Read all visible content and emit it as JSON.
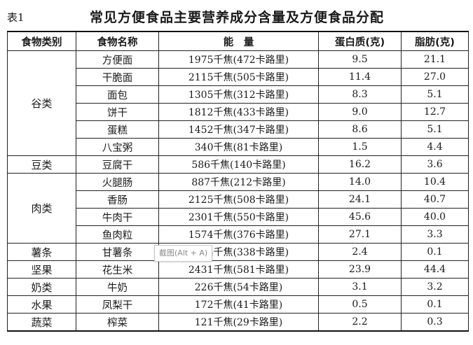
{
  "caption": {
    "table_no": "表1",
    "title": "常见方便食品主要营养成分含量及方便食品分配"
  },
  "headers": [
    "食物类别",
    "食物名称",
    "能　量",
    "蛋白质(克)",
    "脂肪(克)"
  ],
  "groups": [
    {
      "category": "谷类",
      "rows": [
        {
          "name": "方便面",
          "energy": "1975千焦(472卡路里)",
          "protein": "9.5",
          "fat": "21.1"
        },
        {
          "name": "干脆面",
          "energy": "2115千焦(505卡路里)",
          "protein": "11.4",
          "fat": "27.0"
        },
        {
          "name": "面包",
          "energy": "1305千焦(312卡路里)",
          "protein": "8.3",
          "fat": "5.1"
        },
        {
          "name": "饼干",
          "energy": "1812千焦(433卡路里)",
          "protein": "9.0",
          "fat": "12.7"
        },
        {
          "name": "蛋糕",
          "energy": "1452千焦(347卡路里)",
          "protein": "8.6",
          "fat": "5.1"
        },
        {
          "name": "八宝粥",
          "energy": "340千焦(81卡路里)",
          "protein": "1.5",
          "fat": "4.4"
        }
      ]
    },
    {
      "category": "豆类",
      "rows": [
        {
          "name": "豆腐干",
          "energy": "586千焦(140卡路里)",
          "protein": "16.2",
          "fat": "3.6"
        }
      ]
    },
    {
      "category": "肉类",
      "rows": [
        {
          "name": "火腿肠",
          "energy": "887千焦(212卡路里)",
          "protein": "14.0",
          "fat": "10.4"
        },
        {
          "name": "香肠",
          "energy": "2125千焦(508卡路里)",
          "protein": "24.1",
          "fat": "40.7"
        },
        {
          "name": "牛肉干",
          "energy": "2301千焦(550卡路里)",
          "protein": "45.6",
          "fat": "40.0"
        },
        {
          "name": "鱼肉粒",
          "energy": "1574千焦(376卡路里)",
          "protein": "27.1",
          "fat": "3.3"
        }
      ]
    },
    {
      "category": "薯条",
      "rows": [
        {
          "name": "甘薯条",
          "energy": "1414千焦(338卡路里)",
          "protein": "2.4",
          "fat": "0.1"
        }
      ]
    },
    {
      "category": "坚果",
      "rows": [
        {
          "name": "花生米",
          "energy": "2431千焦(581卡路里)",
          "protein": "23.9",
          "fat": "44.4"
        }
      ]
    },
    {
      "category": "奶类",
      "rows": [
        {
          "name": "牛奶",
          "energy": "226千焦(54卡路里)",
          "protein": "3.1",
          "fat": "3.2"
        }
      ]
    },
    {
      "category": "水果",
      "rows": [
        {
          "name": "凤梨干",
          "energy": "172千焦(41卡路里)",
          "protein": "0.5",
          "fat": "0.1"
        }
      ]
    },
    {
      "category": "蔬菜",
      "rows": [
        {
          "name": "榨菜",
          "energy": "121千焦(29卡路里)",
          "protein": "2.2",
          "fat": "0.3"
        }
      ]
    }
  ],
  "watermark": "截图(Alt + A)"
}
